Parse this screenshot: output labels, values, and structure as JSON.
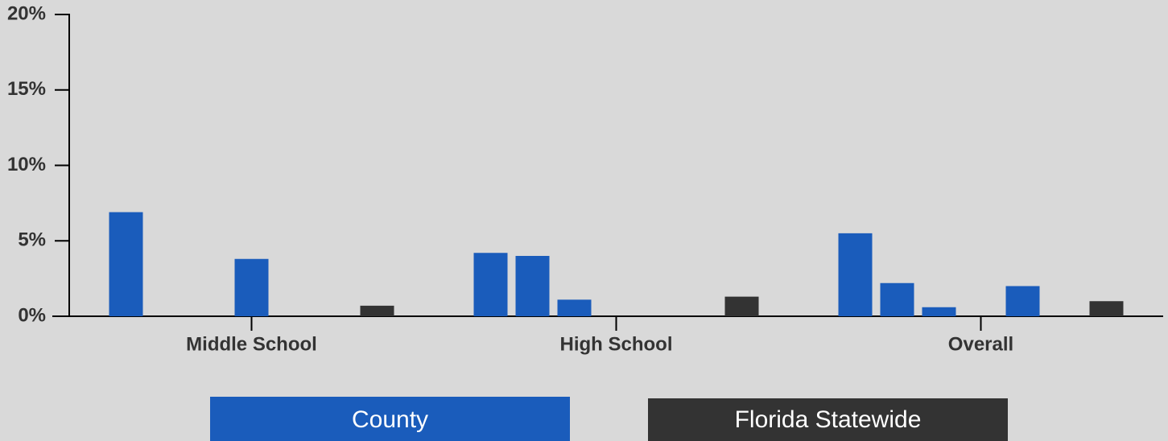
{
  "chart_data": {
    "type": "bar",
    "categories": [
      "Middle School",
      "High School",
      "Overall"
    ],
    "series": [
      {
        "name": "County",
        "color": "#1a5cbb",
        "values": [
          [
            6.9,
            null,
            null,
            3.8,
            null,
            null
          ],
          [
            4.2,
            4.0,
            1.1,
            null,
            null,
            null
          ],
          [
            5.5,
            2.2,
            0.6,
            null,
            2.0,
            null
          ]
        ]
      },
      {
        "name": "Florida Statewide",
        "color": "#333333",
        "values": [
          0.7,
          1.3,
          1.0
        ]
      }
    ],
    "ylim": [
      0,
      20
    ],
    "yticks": [
      {
        "value": 0,
        "label": "0%"
      },
      {
        "value": 5,
        "label": "5%"
      },
      {
        "value": 10,
        "label": "10%"
      },
      {
        "value": 15,
        "label": "15%"
      },
      {
        "value": 20,
        "label": "20%"
      }
    ],
    "grid": false
  }
}
